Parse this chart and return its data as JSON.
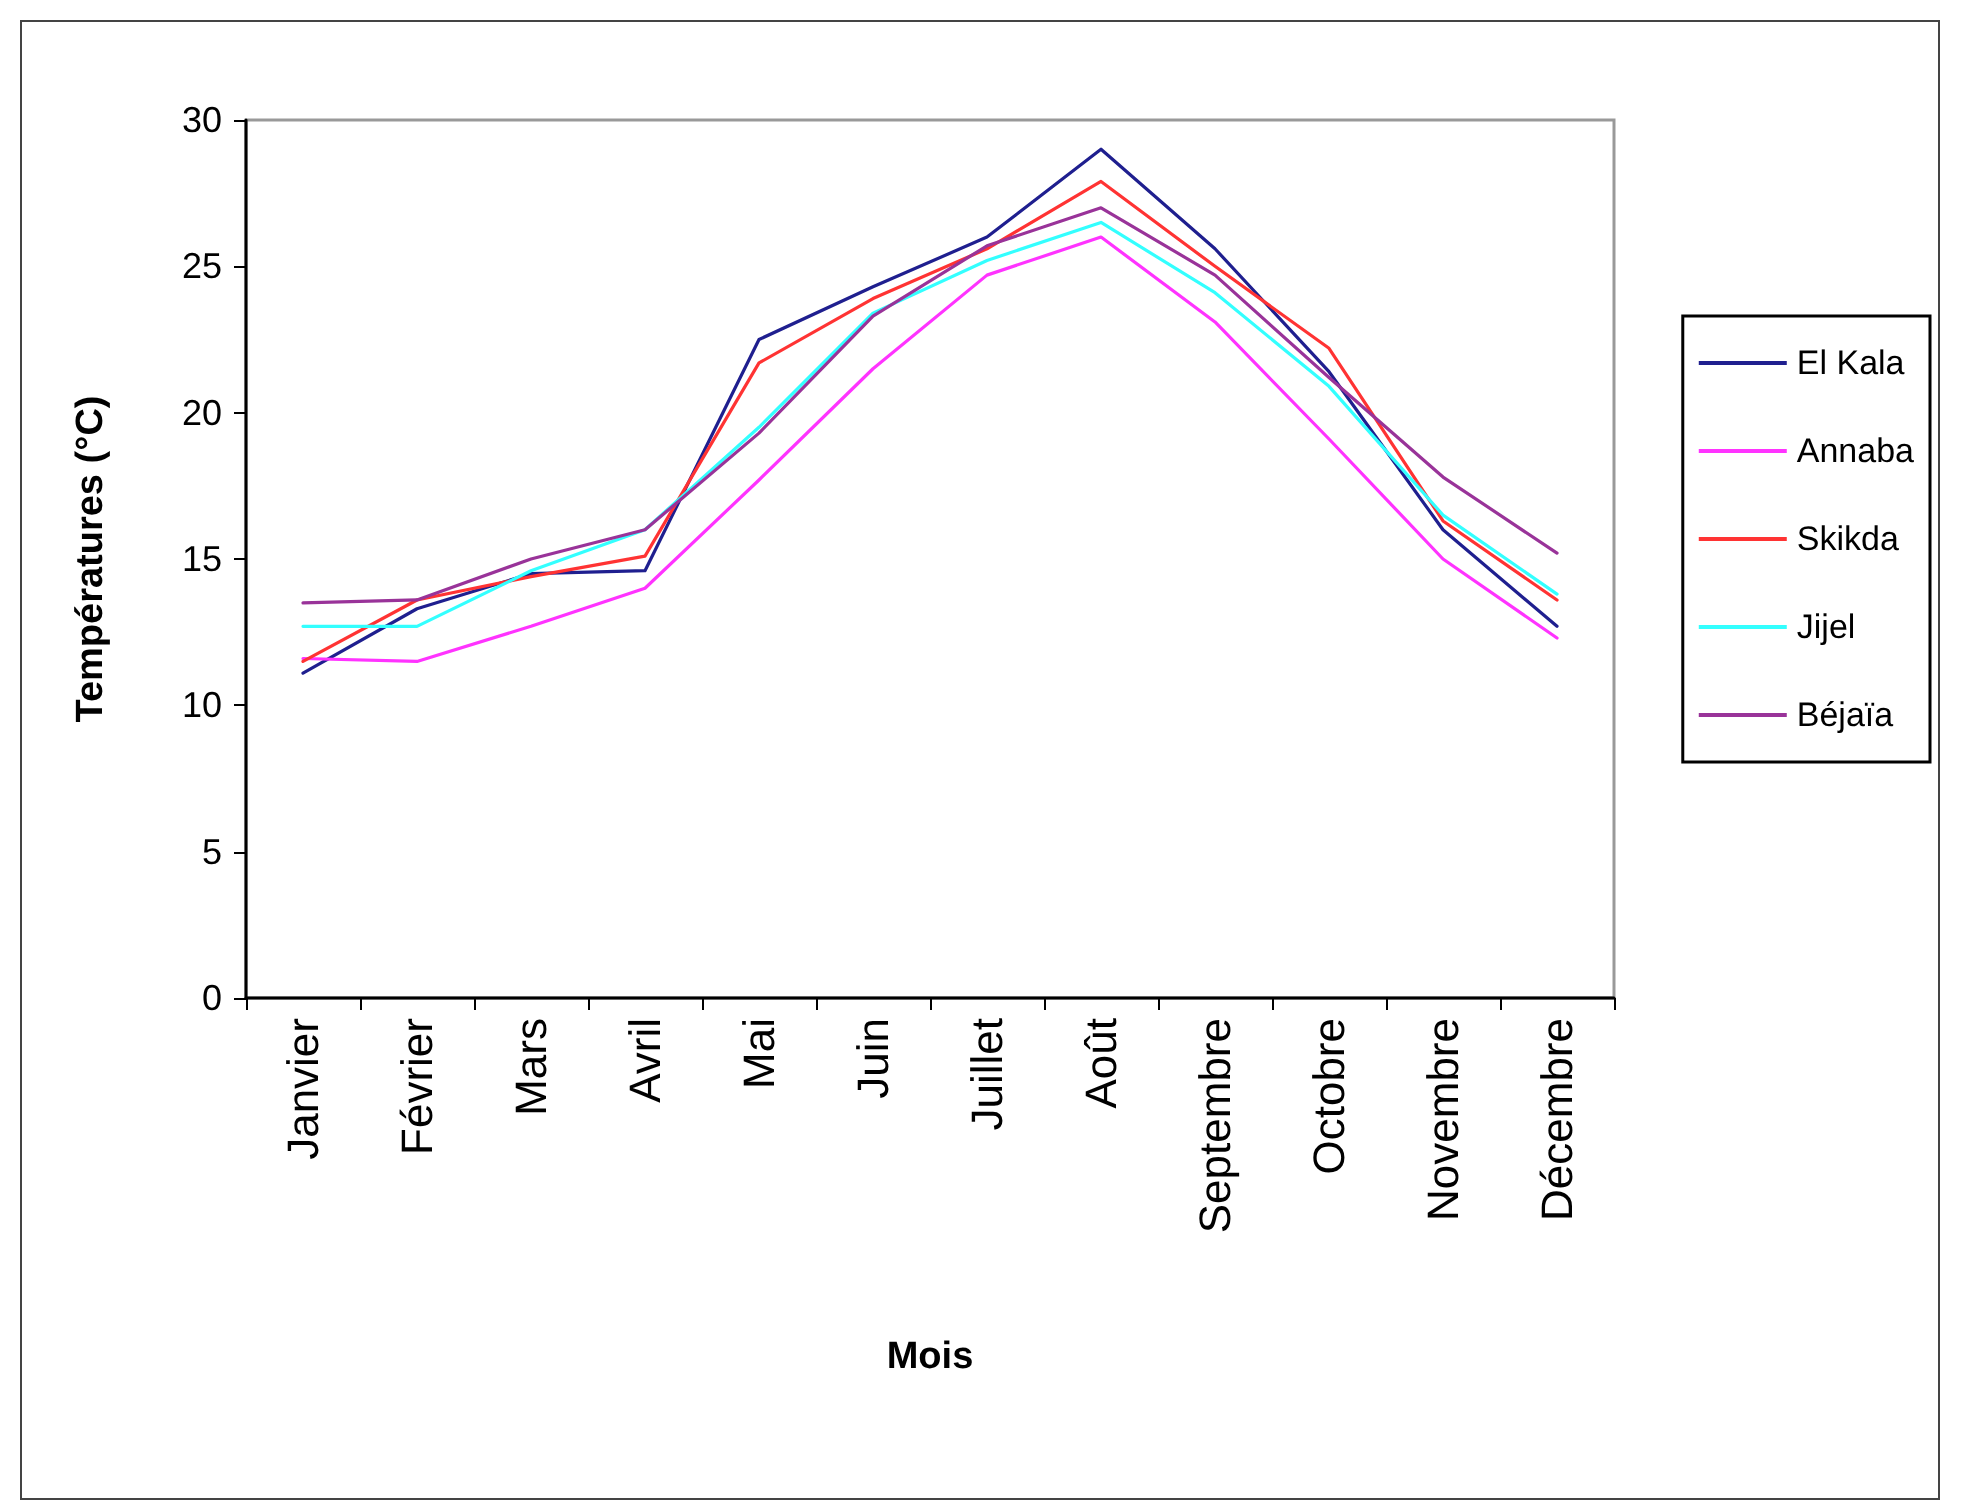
{
  "chart_data": {
    "type": "line",
    "xlabel": "Mois",
    "ylabel": "Températures (°C)",
    "categories": [
      "Janvier",
      "Février",
      "Mars",
      "Avril",
      "Mai",
      "Juin",
      "Juillet",
      "Août",
      "Septembre",
      "Octobre",
      "Novembre",
      "Décembre"
    ],
    "series": [
      {
        "name": "El Kala",
        "color": "#1f1f8f",
        "values": [
          11.1,
          13.3,
          14.5,
          14.6,
          22.5,
          24.3,
          26.0,
          29.0,
          25.6,
          21.4,
          16.0,
          12.7
        ]
      },
      {
        "name": "Annaba",
        "color": "#ff33ff",
        "values": [
          11.6,
          11.5,
          12.7,
          14.0,
          17.7,
          21.5,
          24.7,
          26.0,
          23.1,
          19.1,
          15.0,
          12.3
        ]
      },
      {
        "name": "Skikda",
        "color": "#ff3333",
        "values": [
          11.5,
          13.6,
          14.4,
          15.1,
          21.7,
          23.9,
          25.6,
          27.9,
          25.0,
          22.2,
          16.3,
          13.6
        ]
      },
      {
        "name": "Jijel",
        "color": "#33ffff",
        "values": [
          12.7,
          12.7,
          14.6,
          16.0,
          19.5,
          23.4,
          25.2,
          26.5,
          24.1,
          20.9,
          16.5,
          13.8
        ]
      },
      {
        "name": "Béjaïa",
        "color": "#993399",
        "values": [
          13.5,
          13.6,
          15.0,
          16.0,
          19.3,
          23.3,
          25.7,
          27.0,
          24.7,
          21.2,
          17.8,
          15.2
        ]
      }
    ],
    "ylim": [
      0,
      30
    ],
    "yticks": [
      0,
      5,
      10,
      15,
      20,
      25,
      30
    ],
    "grid": false,
    "legend": "right",
    "marker": "none",
    "line_style": "solid"
  }
}
